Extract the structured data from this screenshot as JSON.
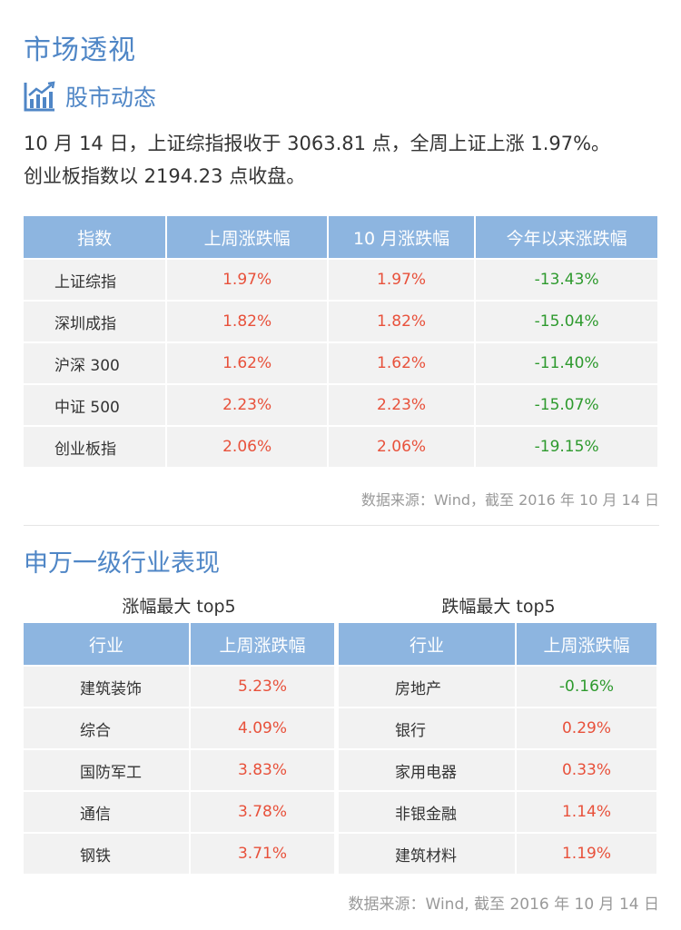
{
  "title": "市场透视",
  "subsection": {
    "label": "股市动态",
    "icon": "bar-chart-trend-icon"
  },
  "summary": {
    "line1": "10 月 14 日，上证综指报收于 3063.81 点，全周上证上涨 1.97%。",
    "line2": "创业板指数以 2194.23 点收盘。"
  },
  "index_table": {
    "headers": [
      "指数",
      "上周涨跌幅",
      "10 月涨跌幅",
      "今年以来涨跌幅"
    ],
    "rows": [
      [
        "上证综指",
        "1.97%",
        "1.97%",
        "-13.43%"
      ],
      [
        "深圳成指",
        "1.82%",
        "1.82%",
        "-15.04%"
      ],
      [
        "沪深 300",
        "1.62%",
        "1.62%",
        "-11.40%"
      ],
      [
        "中证 500",
        "2.23%",
        "2.23%",
        "-15.07%"
      ],
      [
        "创业板指",
        "2.06%",
        "2.06%",
        "-19.15%"
      ]
    ]
  },
  "source1": "数据来源：Wind，截至 2016 年 10 月 14 日",
  "section2": {
    "title": "申万一级行业表现",
    "top_caption": "涨幅最大 top5",
    "bottom_caption": "跌幅最大 top5",
    "headers": [
      "行业",
      "上周涨跌幅"
    ],
    "top_rows": [
      [
        "建筑装饰",
        "5.23%"
      ],
      [
        "综合",
        "4.09%"
      ],
      [
        "国防军工",
        "3.83%"
      ],
      [
        "通信",
        "3.78%"
      ],
      [
        "钢铁",
        "3.71%"
      ]
    ],
    "bottom_rows": [
      [
        "房地产",
        "-0.16%"
      ],
      [
        "银行",
        "0.29%"
      ],
      [
        "家用电器",
        "0.33%"
      ],
      [
        "非银金融",
        "1.14%"
      ],
      [
        "建筑材料",
        "1.19%"
      ]
    ]
  },
  "source2": "数据来源：Wind, 截至 2016 年 10 月 14 日",
  "colors": {
    "accent": "#4f86c6",
    "header_bg": "#8db5e0",
    "up": "#e8513b",
    "down": "#2e9a2e",
    "cell_bg": "#f2f2f2"
  }
}
